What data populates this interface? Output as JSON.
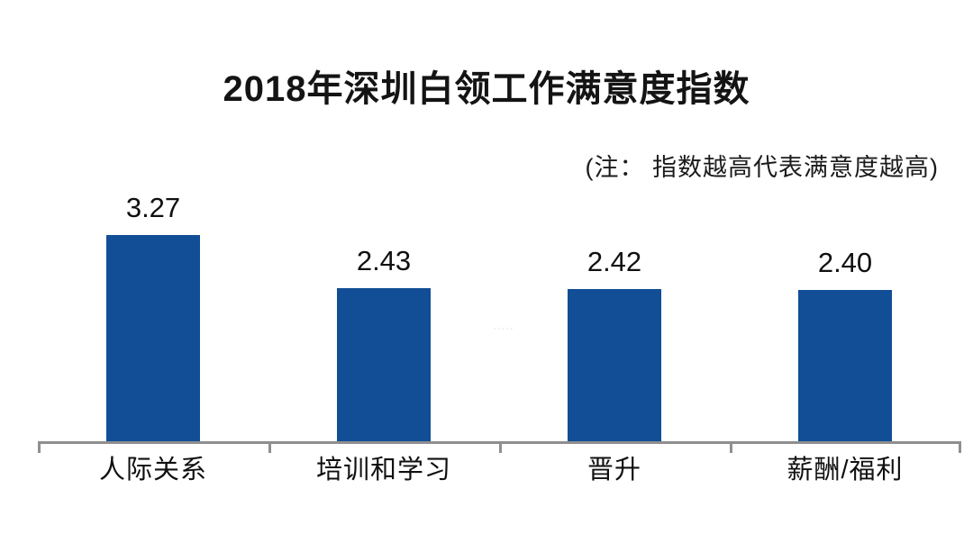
{
  "chart_data": {
    "type": "bar",
    "title": "2018年深圳白领工作满意度指数",
    "note": "(注： 指数越高代表满意度越高)",
    "categories": [
      "人际关系",
      "培训和学习",
      "晋升",
      "薪酬/福利"
    ],
    "values": [
      3.27,
      2.43,
      2.42,
      2.4
    ],
    "value_labels": [
      "3.27",
      "2.43",
      "2.42",
      "2.40"
    ],
    "xlabel": "",
    "ylabel": "",
    "ylim": [
      0,
      3.5
    ],
    "grid": false,
    "legend": false,
    "bar_color": "#114e96",
    "axis_color": "#8f8f8f",
    "text_color": "#141414"
  },
  "watermark": "·····"
}
